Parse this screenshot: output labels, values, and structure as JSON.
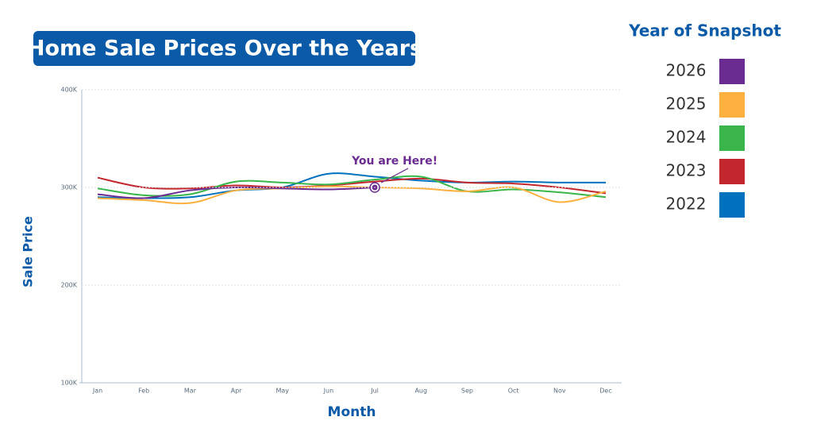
{
  "chart_data": {
    "type": "line",
    "title": "Home Sale Prices Over the Years",
    "x_label": "Month",
    "y_label": "Sale Price",
    "legend_title": "Year of Snapshot",
    "legend_position": "right",
    "grid": true,
    "annotation": {
      "text": "You are Here!",
      "series": 0,
      "index": 6
    },
    "categories": [
      "Jan",
      "Feb",
      "Mar",
      "Apr",
      "May",
      "Jun",
      "Jul",
      "Aug",
      "Sep",
      "Oct",
      "Nov",
      "Dec"
    ],
    "ylim": [
      100000,
      400000
    ],
    "yticks": [
      {
        "value": 100000,
        "label": "100K"
      },
      {
        "value": 200000,
        "label": "200K"
      },
      {
        "value": 300000,
        "label": "300K"
      },
      {
        "value": 400000,
        "label": "400K"
      }
    ],
    "series": [
      {
        "name": "2026",
        "color": "#6a2c91",
        "values": [
          293000,
          289000,
          297000,
          300000,
          299000,
          298000,
          300000,
          null,
          null,
          null,
          null,
          null
        ]
      },
      {
        "name": "2025",
        "color": "#fbb040",
        "values": [
          289000,
          287000,
          284000,
          297000,
          299000,
          301000,
          300000,
          299000,
          296000,
          300000,
          285000,
          296000
        ]
      },
      {
        "name": "2024",
        "color": "#39b54a",
        "values": [
          299000,
          292000,
          293000,
          306000,
          305000,
          303000,
          308000,
          311000,
          296000,
          298000,
          295000,
          290000
        ]
      },
      {
        "name": "2023",
        "color": "#c1272d",
        "values": [
          310000,
          300000,
          299000,
          302000,
          300000,
          302000,
          306000,
          309000,
          305000,
          304000,
          300000,
          294000
        ]
      },
      {
        "name": "2022",
        "color": "#0071bc",
        "values": [
          290000,
          289000,
          290000,
          297000,
          300000,
          314000,
          311000,
          307000,
          305000,
          306000,
          305000,
          305000
        ]
      }
    ]
  }
}
